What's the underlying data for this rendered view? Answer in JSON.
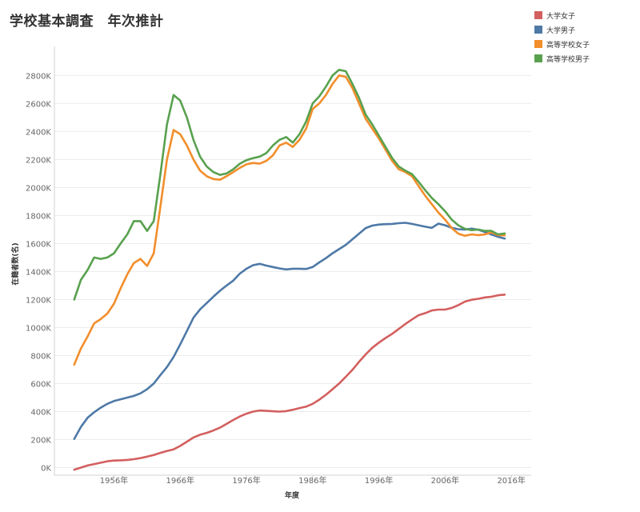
{
  "chart_data": {
    "type": "line",
    "title": "学校基本調査　年次推計",
    "xlabel": "年度",
    "ylabel": "在籍者数(名)",
    "xlim": [
      1947,
      2019
    ],
    "ylim": [
      -20000,
      2950000
    ],
    "x_ticks": [
      1956,
      1966,
      1976,
      1986,
      1996,
      2006,
      2016
    ],
    "x_tick_labels": [
      "1956年",
      "1966年",
      "1976年",
      "1986年",
      "1996年",
      "2006年",
      "2016年"
    ],
    "y_ticks": [
      0,
      200000,
      400000,
      600000,
      800000,
      1000000,
      1200000,
      1400000,
      1600000,
      1800000,
      2000000,
      2200000,
      2400000,
      2600000,
      2800000
    ],
    "y_tick_labels": [
      "0K",
      "200K",
      "400K",
      "600K",
      "800K",
      "1000K",
      "1200K",
      "1400K",
      "1600K",
      "1800K",
      "2000K",
      "2200K",
      "2400K",
      "2600K",
      "2800K"
    ],
    "grid": true,
    "legend_position": "top-right",
    "x": [
      1950,
      1951,
      1952,
      1953,
      1954,
      1955,
      1956,
      1957,
      1958,
      1959,
      1960,
      1961,
      1962,
      1963,
      1964,
      1965,
      1966,
      1967,
      1968,
      1969,
      1970,
      1971,
      1972,
      1973,
      1974,
      1975,
      1976,
      1977,
      1978,
      1979,
      1980,
      1981,
      1982,
      1983,
      1984,
      1985,
      1986,
      1987,
      1988,
      1989,
      1990,
      1991,
      1992,
      1993,
      1994,
      1995,
      1996,
      1997,
      1998,
      1999,
      2000,
      2001,
      2002,
      2003,
      2004,
      2005,
      2006,
      2007,
      2008,
      2009,
      2010,
      2011,
      2012,
      2013,
      2014,
      2015
    ],
    "series": [
      {
        "name": "大学女子",
        "color": "#d35f5f",
        "values": [
          -15000,
          0,
          15000,
          25000,
          35000,
          45000,
          50000,
          52000,
          55000,
          60000,
          68000,
          78000,
          90000,
          105000,
          118000,
          130000,
          155000,
          185000,
          215000,
          235000,
          248000,
          265000,
          285000,
          312000,
          340000,
          365000,
          385000,
          400000,
          408000,
          405000,
          402000,
          400000,
          403000,
          413000,
          425000,
          435000,
          455000,
          485000,
          520000,
          560000,
          600000,
          648000,
          698000,
          755000,
          808000,
          855000,
          892000,
          925000,
          955000,
          990000,
          1025000,
          1058000,
          1088000,
          1103000,
          1122000,
          1128000,
          1128000,
          1140000,
          1160000,
          1185000,
          1198000,
          1205000,
          1215000,
          1220000,
          1230000,
          1235000
        ]
      },
      {
        "name": "大学男子",
        "color": "#4e79a7",
        "values": [
          205000,
          290000,
          355000,
          395000,
          428000,
          455000,
          475000,
          488000,
          500000,
          512000,
          530000,
          560000,
          600000,
          660000,
          718000,
          790000,
          880000,
          975000,
          1070000,
          1130000,
          1175000,
          1220000,
          1262000,
          1300000,
          1335000,
          1385000,
          1420000,
          1445000,
          1455000,
          1442000,
          1432000,
          1422000,
          1415000,
          1420000,
          1420000,
          1418000,
          1432000,
          1465000,
          1495000,
          1530000,
          1560000,
          1590000,
          1630000,
          1670000,
          1710000,
          1728000,
          1735000,
          1738000,
          1740000,
          1745000,
          1748000,
          1740000,
          1730000,
          1720000,
          1712000,
          1742000,
          1730000,
          1712000,
          1702000,
          1700000,
          1706000,
          1698000,
          1682000,
          1664000,
          1648000,
          1635000
        ]
      },
      {
        "name": "高等学校女子",
        "color": "#f28e2b",
        "values": [
          735000,
          850000,
          935000,
          1030000,
          1060000,
          1100000,
          1170000,
          1280000,
          1380000,
          1460000,
          1490000,
          1440000,
          1530000,
          1860000,
          2200000,
          2410000,
          2380000,
          2300000,
          2200000,
          2120000,
          2080000,
          2060000,
          2055000,
          2080000,
          2110000,
          2140000,
          2165000,
          2175000,
          2170000,
          2190000,
          2230000,
          2300000,
          2320000,
          2290000,
          2340000,
          2420000,
          2560000,
          2600000,
          2660000,
          2740000,
          2800000,
          2790000,
          2710000,
          2600000,
          2490000,
          2420000,
          2350000,
          2270000,
          2190000,
          2130000,
          2110000,
          2080000,
          2010000,
          1940000,
          1880000,
          1820000,
          1770000,
          1710000,
          1670000,
          1655000,
          1665000,
          1660000,
          1665000,
          1680000,
          1660000,
          1658000
        ]
      },
      {
        "name": "高等学校男子",
        "color": "#59a14f",
        "values": [
          1200000,
          1340000,
          1410000,
          1500000,
          1490000,
          1500000,
          1530000,
          1600000,
          1665000,
          1760000,
          1760000,
          1690000,
          1760000,
          2090000,
          2450000,
          2660000,
          2620000,
          2500000,
          2340000,
          2220000,
          2150000,
          2110000,
          2090000,
          2100000,
          2130000,
          2170000,
          2195000,
          2210000,
          2220000,
          2245000,
          2300000,
          2340000,
          2360000,
          2320000,
          2380000,
          2470000,
          2600000,
          2650000,
          2720000,
          2800000,
          2840000,
          2830000,
          2740000,
          2640000,
          2520000,
          2450000,
          2370000,
          2290000,
          2210000,
          2150000,
          2120000,
          2095000,
          2040000,
          1980000,
          1925000,
          1880000,
          1830000,
          1770000,
          1730000,
          1705000,
          1695000,
          1700000,
          1690000,
          1690000,
          1665000,
          1672000
        ]
      }
    ]
  }
}
